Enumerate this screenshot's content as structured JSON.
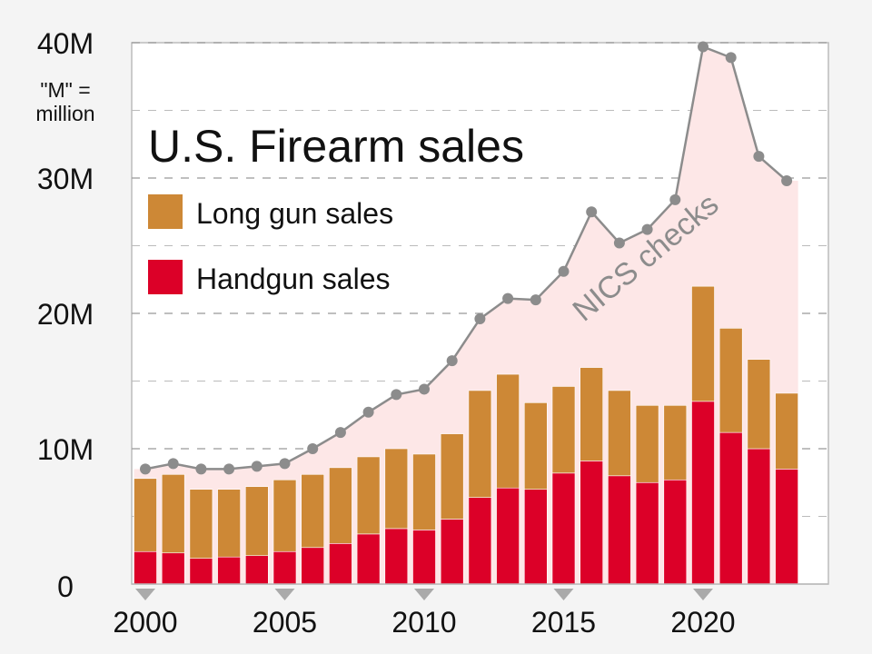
{
  "chart_data": {
    "type": "bar",
    "title": "U.S. Firearm sales",
    "unit_note": "\"M\" = million",
    "unit_note_lines": [
      "\"M\" =",
      "million"
    ],
    "y_ticks": [
      {
        "value": 0,
        "label": "0"
      },
      {
        "value": 10000000,
        "label": "10M"
      },
      {
        "value": 20000000,
        "label": "20M"
      },
      {
        "value": 30000000,
        "label": "30M"
      },
      {
        "value": 40000000,
        "label": "40M"
      }
    ],
    "ylim": [
      0,
      40000000
    ],
    "y_minor_gridlines": [
      5000000,
      15000000,
      25000000,
      35000000
    ],
    "x_ticks": [
      {
        "value": 2000,
        "label": "2000"
      },
      {
        "value": 2005,
        "label": "2005"
      },
      {
        "value": 2010,
        "label": "2010"
      },
      {
        "value": 2015,
        "label": "2015"
      },
      {
        "value": 2020,
        "label": "2020"
      }
    ],
    "xlim": [
      2000,
      2024
    ],
    "x": [
      2000,
      2001,
      2002,
      2003,
      2004,
      2005,
      2006,
      2007,
      2008,
      2009,
      2010,
      2011,
      2012,
      2013,
      2014,
      2015,
      2016,
      2017,
      2018,
      2019,
      2020,
      2021,
      2022,
      2023
    ],
    "series": [
      {
        "name": "Handgun sales",
        "kind": "stacked-bar",
        "color": "#dc0028",
        "values": [
          2400000,
          2300000,
          1900000,
          2000000,
          2100000,
          2400000,
          2700000,
          3000000,
          3700000,
          4100000,
          4000000,
          4800000,
          6400000,
          7100000,
          7000000,
          8200000,
          9100000,
          8000000,
          7500000,
          7700000,
          13500000,
          11200000,
          10000000,
          8500000
        ]
      },
      {
        "name": "Long gun sales",
        "kind": "stacked-bar",
        "color": "#cd8836",
        "values": [
          5400000,
          5800000,
          5100000,
          5000000,
          5100000,
          5300000,
          5400000,
          5600000,
          5700000,
          5900000,
          5600000,
          6300000,
          7900000,
          8400000,
          6400000,
          6400000,
          6900000,
          6300000,
          5700000,
          5500000,
          8500000,
          7700000,
          6600000,
          5600000
        ]
      },
      {
        "name": "NICS checks",
        "kind": "line-area",
        "color": "#8c8c8c",
        "area_color": "#fde7e7",
        "values": [
          8500000,
          8900000,
          8500000,
          8500000,
          8700000,
          8900000,
          10000000,
          11200000,
          12700000,
          14000000,
          14400000,
          16500000,
          19600000,
          21100000,
          21000000,
          23100000,
          27500000,
          25200000,
          26200000,
          28400000,
          39700000,
          38900000,
          31600000,
          29800000
        ]
      }
    ],
    "legend": {
      "placement": "top-left",
      "entries": [
        {
          "label": "Long gun sales",
          "color": "#cd8836"
        },
        {
          "label": "Handgun sales",
          "color": "#dc0028"
        }
      ]
    },
    "annotation": {
      "text": "NICS checks",
      "color": "#8c8c8c"
    },
    "grid": true
  }
}
